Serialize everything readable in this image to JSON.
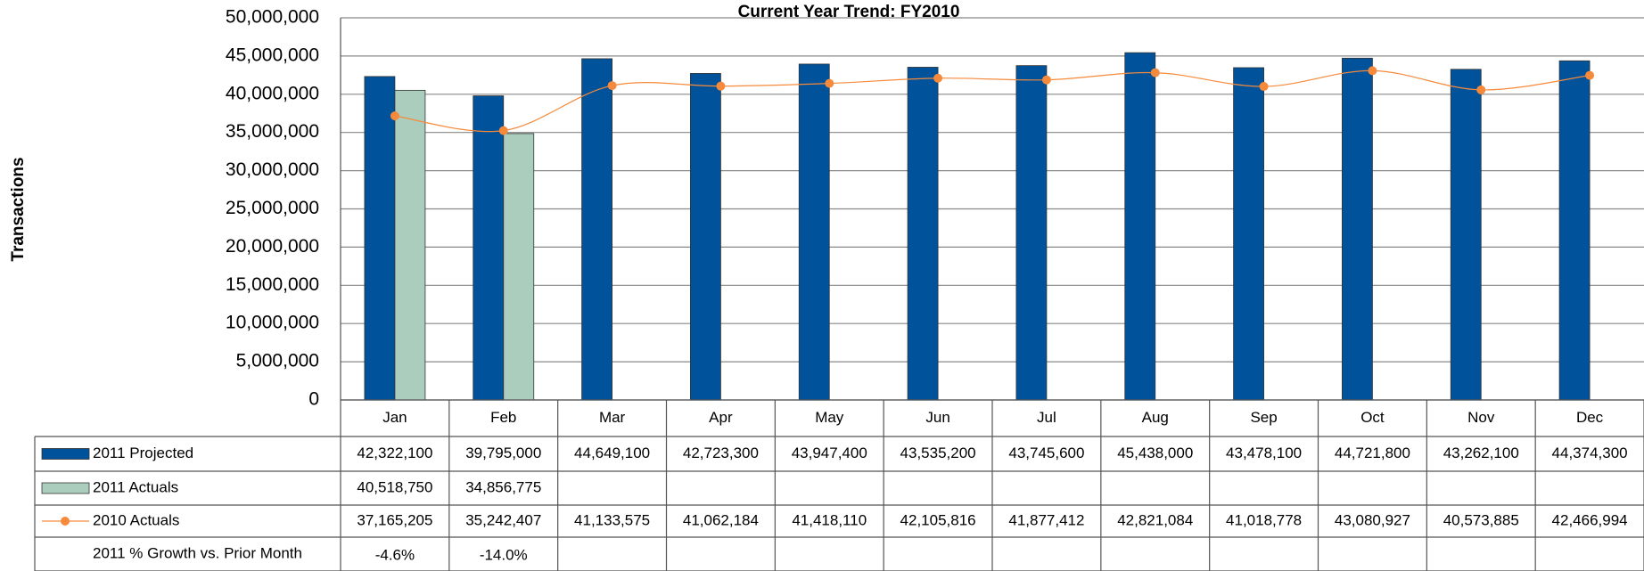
{
  "chart_data": {
    "type": "bar",
    "title": "Current Year Trend: FY2010",
    "y_label": "Transactions",
    "categories": [
      "Jan",
      "Feb",
      "Mar",
      "Apr",
      "May",
      "Jun",
      "Jul",
      "Aug",
      "Sep",
      "Oct",
      "Nov",
      "Dec"
    ],
    "series": [
      {
        "name": "2011 Projected",
        "type": "bar",
        "color": "#00529b",
        "values": [
          42322100,
          39795000,
          44649100,
          42723300,
          43947400,
          43535200,
          43745600,
          45438000,
          43478100,
          44721800,
          43262100,
          44374300
        ],
        "value_labels": [
          "42,322,100",
          "39,795,000",
          "44,649,100",
          "42,723,300",
          "43,947,400",
          "43,535,200",
          "43,745,600",
          "45,438,000",
          "43,478,100",
          "44,721,800",
          "43,262,100",
          "44,374,300"
        ]
      },
      {
        "name": "2011 Actuals",
        "type": "bar",
        "color": "#abcdbd",
        "values": [
          40518750,
          34856775,
          null,
          null,
          null,
          null,
          null,
          null,
          null,
          null,
          null,
          null
        ],
        "value_labels": [
          "40,518,750",
          "34,856,775",
          null,
          null,
          null,
          null,
          null,
          null,
          null,
          null,
          null,
          null
        ]
      },
      {
        "name": "2010 Actuals",
        "type": "line",
        "color": "#f58a3c",
        "values": [
          37165205,
          35242407,
          41133575,
          41062184,
          41418110,
          42105816,
          41877412,
          42821084,
          41018778,
          43080927,
          40573885,
          42466994
        ],
        "value_labels": [
          "37,165,205",
          "35,242,407",
          "41,133,575",
          "41,062,184",
          "41,418,110",
          "42,105,816",
          "41,877,412",
          "42,821,084",
          "41,018,778",
          "43,080,927",
          "40,573,885",
          "42,466,994"
        ]
      }
    ],
    "growth": {
      "name": "2011 % Growth vs. Prior Month",
      "values": [
        -4.6,
        -14.0,
        null,
        null,
        null,
        null,
        null,
        null,
        null,
        null,
        null,
        null
      ],
      "value_labels": [
        "-4.6%",
        "-14.0%",
        null,
        null,
        null,
        null,
        null,
        null,
        null,
        null,
        null,
        null
      ]
    },
    "ylim": [
      0,
      50000000
    ],
    "yticks": [
      0,
      {
        "value": 5000000,
        "label": "5,000,000"
      },
      {
        "value": 10000000,
        "label": "10,000,000"
      },
      {
        "value": 15000000,
        "label": "15,000,000"
      },
      {
        "value": 20000000,
        "label": "20,000,000"
      },
      {
        "value": 25000000,
        "label": "25,000,000"
      },
      {
        "value": 30000000,
        "label": "30,000,000"
      },
      {
        "value": 35000000,
        "label": "35,000,000"
      },
      {
        "value": 40000000,
        "label": "40,000,000"
      },
      {
        "value": 45000000,
        "label": "45,000,000"
      },
      {
        "value": 50000000,
        "label": "50,000,000"
      }
    ],
    "grid": true
  }
}
